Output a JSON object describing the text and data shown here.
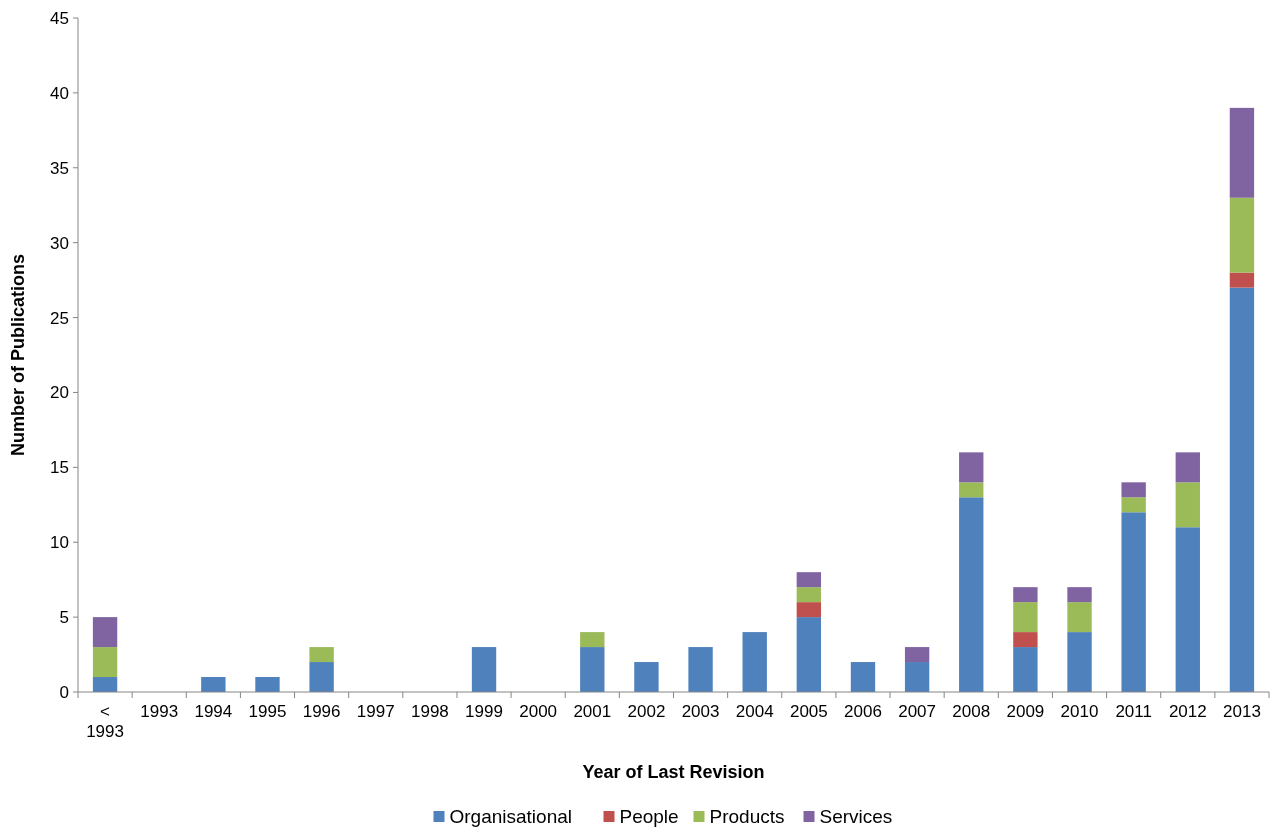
{
  "chart_data": {
    "type": "bar",
    "stacked": true,
    "xlabel": "Year of Last Revision",
    "ylabel": "Number of Publications",
    "categories": [
      "< 1993",
      "1993",
      "1994",
      "1995",
      "1996",
      "1997",
      "1998",
      "1999",
      "2000",
      "2001",
      "2002",
      "2003",
      "2004",
      "2005",
      "2006",
      "2007",
      "2008",
      "2009",
      "2010",
      "2011",
      "2012",
      "2013"
    ],
    "series": [
      {
        "name": "Organisational",
        "color": "#4f81bd",
        "values": [
          1,
          0,
          1,
          1,
          2,
          0,
          0,
          3,
          0,
          3,
          2,
          3,
          4,
          5,
          2,
          2,
          13,
          3,
          4,
          12,
          11,
          27
        ]
      },
      {
        "name": "People",
        "color": "#c0504d",
        "values": [
          0,
          0,
          0,
          0,
          0,
          0,
          0,
          0,
          0,
          0,
          0,
          0,
          0,
          1,
          0,
          0,
          0,
          1,
          0,
          0,
          0,
          1
        ]
      },
      {
        "name": "Products",
        "color": "#9bbb59",
        "values": [
          2,
          0,
          0,
          0,
          1,
          0,
          0,
          0,
          0,
          1,
          0,
          0,
          0,
          1,
          0,
          0,
          1,
          2,
          2,
          1,
          3,
          5
        ]
      },
      {
        "name": "Services",
        "color": "#8064a2",
        "values": [
          2,
          0,
          0,
          0,
          0,
          0,
          0,
          0,
          0,
          0,
          0,
          0,
          0,
          1,
          0,
          1,
          2,
          1,
          1,
          1,
          2,
          6
        ]
      }
    ],
    "ylim": [
      0,
      45
    ],
    "yticks": [
      0,
      5,
      10,
      15,
      20,
      25,
      30,
      35,
      40,
      45
    ],
    "grid": false,
    "legend": "bottom"
  }
}
